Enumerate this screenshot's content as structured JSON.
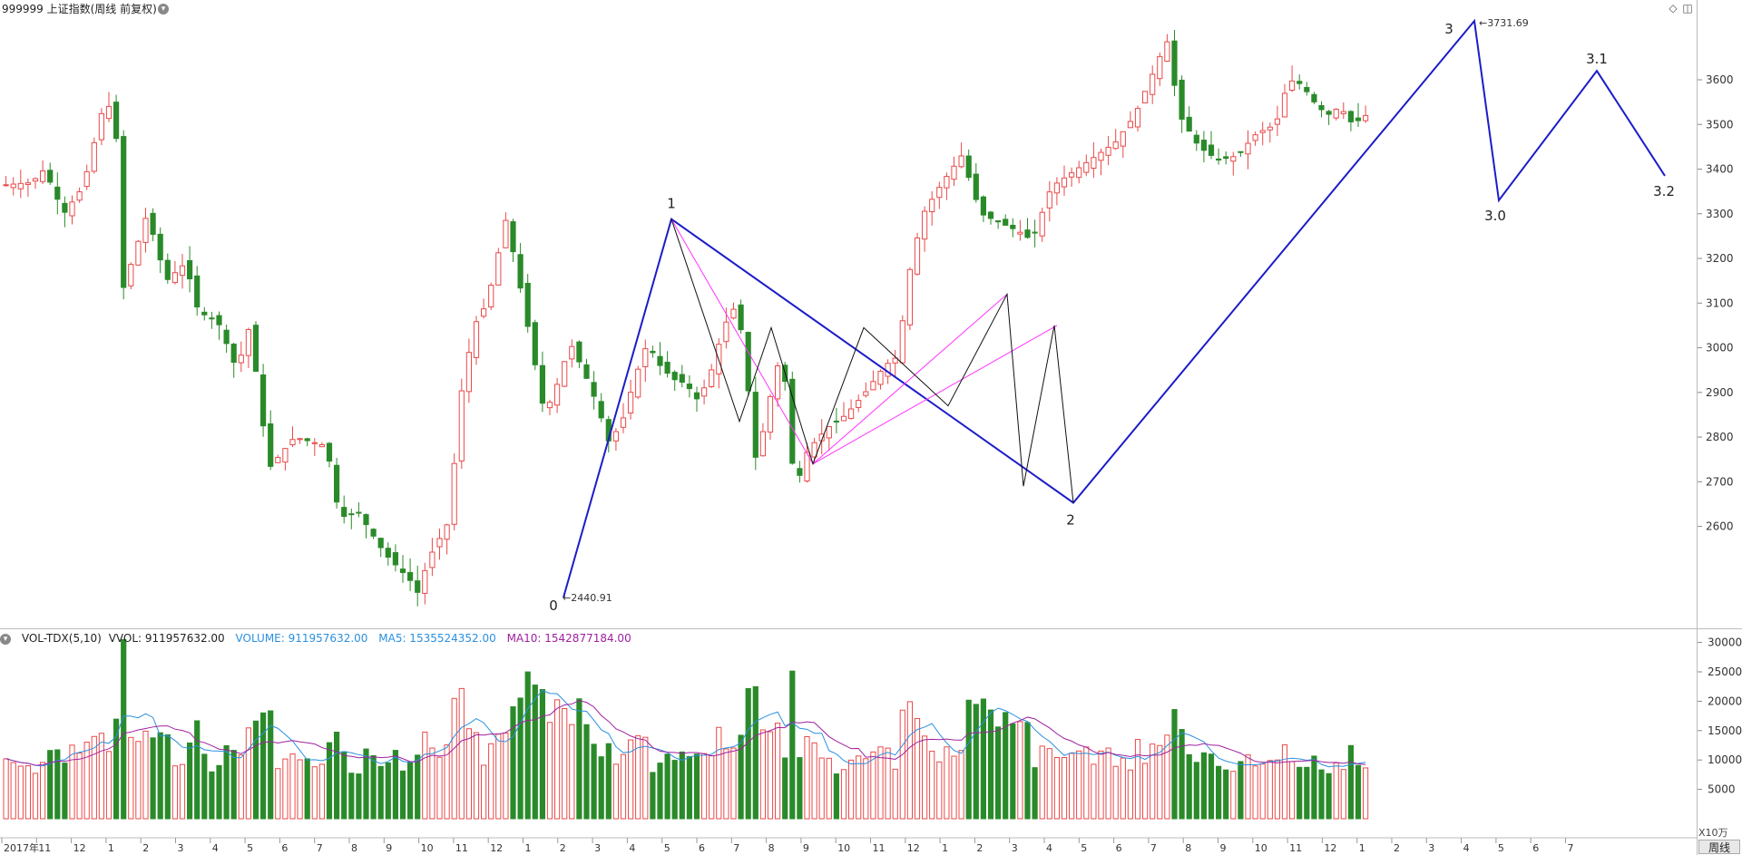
{
  "header": {
    "title": "999999 上证指数(周线 前复权)",
    "menu_icon": "chevron-down-icon",
    "right_icons": [
      "diamond-icon",
      "panel-toggle-icon"
    ]
  },
  "price_axis": {
    "labels": [
      "3600",
      "3500",
      "3400",
      "3300",
      "3200",
      "3100",
      "3000",
      "2900",
      "2800",
      "2700",
      "2600"
    ]
  },
  "wave_labels": {
    "w0": "0",
    "w0_price": "2440.91",
    "w1": "1",
    "w2": "2",
    "w3": "3",
    "w3_price": "3731.69",
    "w30": "3.0",
    "w31": "3.1",
    "w32": "3.2"
  },
  "volume_panel": {
    "name": "VOL-TDX(5,10)",
    "vvol": "VVOL: 911957632.00",
    "volume": "VOLUME: 911957632.00",
    "ma5": "MA5: 1535524352.00",
    "ma10": "MA10: 1542877184.00",
    "axis_labels": [
      "30000",
      "25000",
      "20000",
      "15000",
      "10000",
      "5000"
    ],
    "unit": "X10万"
  },
  "time_axis": {
    "labels": [
      "2017年",
      "11",
      "12",
      "1",
      "2",
      "3",
      "4",
      "5",
      "6",
      "7",
      "8",
      "9",
      "10",
      "11",
      "12",
      "1",
      "2",
      "3",
      "4",
      "5",
      "6",
      "7",
      "8",
      "9",
      "10",
      "11",
      "12",
      "1",
      "2",
      "3",
      "4",
      "5",
      "6",
      "7",
      "8",
      "9",
      "10",
      "11",
      "12",
      "1",
      "2",
      "3",
      "4",
      "5",
      "6",
      "7"
    ]
  },
  "period_label": "周线",
  "chart_data": {
    "type": "candlestick",
    "title": "999999 上证指数(周线 前复权)",
    "ylim": [
      2440,
      3750
    ],
    "wave_points": [
      {
        "label": "0",
        "value": 2440.91
      },
      {
        "label": "1",
        "value": 3288
      },
      {
        "label": "2",
        "value": 2653
      },
      {
        "label": "3",
        "value": 3731.69
      },
      {
        "label": "3.0",
        "value": 3330
      },
      {
        "label": "3.1",
        "value": 3620
      },
      {
        "label": "3.2",
        "value": 3385
      }
    ],
    "colors": {
      "up": "#e94a4a",
      "down": "#2a8a2a",
      "wave": "#1c1cc8",
      "pink": "#ff33ff",
      "ma5": "#2a90e0",
      "ma10": "#a020a0"
    }
  }
}
